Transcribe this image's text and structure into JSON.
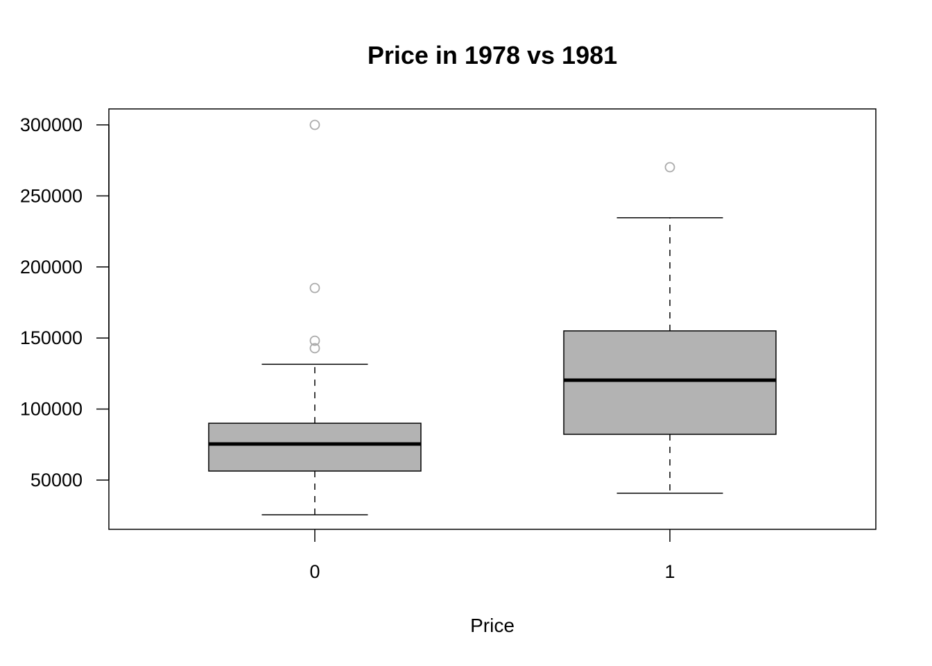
{
  "chart_data": {
    "type": "boxplot",
    "title": "Price in 1978 vs 1981",
    "xlabel": "Price",
    "ylabel": "",
    "categories": [
      "0",
      "1"
    ],
    "ylim": [
      15330,
      311230
    ],
    "yticks": [
      50000,
      100000,
      150000,
      200000,
      250000,
      300000
    ],
    "ytick_labels": [
      "50000",
      "100000",
      "150000",
      "200000",
      "250000",
      "300000"
    ],
    "grid": false,
    "box_color": "#b3b3b3",
    "outlier_color": "#aaaaaa",
    "boxes": [
      {
        "category": "0",
        "lower_whisker": 25600,
        "q1": 56350,
        "median": 75400,
        "q3": 90000,
        "upper_whisker": 131500,
        "outliers": [
          300000,
          185200,
          148100,
          142800
        ]
      },
      {
        "category": "1",
        "lower_whisker": 40700,
        "q1": 82200,
        "median": 120300,
        "q3": 155000,
        "upper_whisker": 234600,
        "outliers": [
          270200
        ]
      }
    ]
  }
}
